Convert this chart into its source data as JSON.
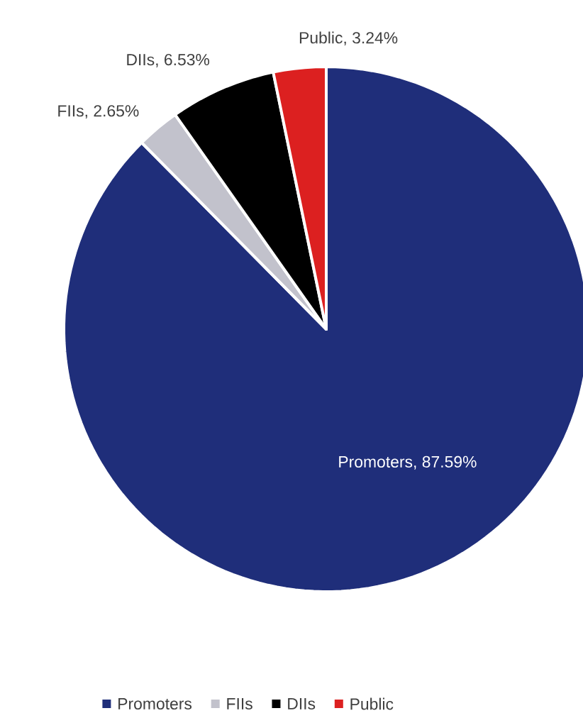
{
  "chart_data": {
    "type": "pie",
    "categories": [
      "Promoters",
      "FIIs",
      "DIIs",
      "Public"
    ],
    "values": [
      87.59,
      2.65,
      6.53,
      3.24
    ],
    "colors": [
      "#1f2e7a",
      "#c2c2cc",
      "#000000",
      "#dc2020"
    ],
    "value_labels": [
      "Promoters, 87.59%",
      "FIIs, 2.65%",
      "DIIs, 6.53%",
      "Public, 3.24%"
    ],
    "legend": "bottom"
  }
}
